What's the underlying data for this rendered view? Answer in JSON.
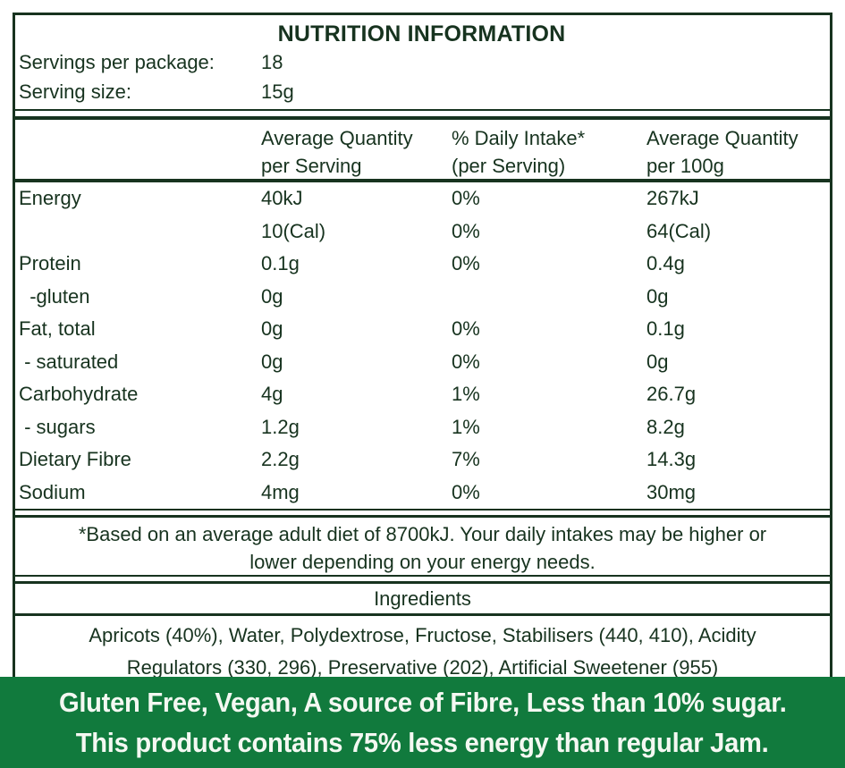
{
  "colors": {
    "ink": "#17331f",
    "banner_bg": "#117a3d",
    "banner_text": "#f4f8f2",
    "background": "#ffffff"
  },
  "panel": {
    "title": "NUTRITION INFORMATION",
    "servings_label": "Servings per package:",
    "servings_value": "18",
    "serving_size_label": "Serving size:",
    "serving_size_value": "15g"
  },
  "table": {
    "header": {
      "per_serving": [
        "Average Quantity",
        "per Serving"
      ],
      "daily_intake": [
        "% Daily Intake*",
        "(per Serving)"
      ],
      "per_100g": [
        "Average Quantity",
        "per 100g"
      ]
    },
    "rows": [
      {
        "nutrient": "Energy",
        "per_serving": "40kJ",
        "daily_intake": "0%",
        "per_100g": "267kJ"
      },
      {
        "nutrient": "",
        "per_serving": "10(Cal)",
        "daily_intake": "0%",
        "per_100g": "64(Cal)"
      },
      {
        "nutrient": "Protein",
        "per_serving": "0.1g",
        "daily_intake": "0%",
        "per_100g": "0.4g"
      },
      {
        "nutrient": "  -gluten",
        "per_serving": "0g",
        "daily_intake": "",
        "per_100g": "0g"
      },
      {
        "nutrient": "Fat, total",
        "per_serving": "0g",
        "daily_intake": "0%",
        "per_100g": "0.1g"
      },
      {
        "nutrient": " - saturated",
        "per_serving": "0g",
        "daily_intake": "0%",
        "per_100g": "0g"
      },
      {
        "nutrient": "Carbohydrate",
        "per_serving": "4g",
        "daily_intake": "1%",
        "per_100g": "26.7g"
      },
      {
        "nutrient": " - sugars",
        "per_serving": "1.2g",
        "daily_intake": "1%",
        "per_100g": "8.2g"
      },
      {
        "nutrient": "Dietary Fibre",
        "per_serving": "2.2g",
        "daily_intake": "7%",
        "per_100g": "14.3g"
      },
      {
        "nutrient": "Sodium",
        "per_serving": "4mg",
        "daily_intake": "0%",
        "per_100g": "30mg"
      }
    ]
  },
  "footnote": {
    "lines": [
      "*Based on an average adult diet of 8700kJ. Your daily intakes may be higher or",
      "lower depending on your energy needs."
    ]
  },
  "ingredients": {
    "heading": "Ingredients",
    "lines": [
      "Apricots (40%), Water, Polydextrose, Fructose, Stabilisers (440, 410), Acidity",
      "Regulators (330, 296), Preservative (202), Artificial Sweetener (955)"
    ]
  },
  "banner": {
    "lines": [
      "Gluten Free, Vegan, A source of Fibre, Less than 10% sugar.",
      "This product contains 75% less energy than regular Jam."
    ]
  }
}
